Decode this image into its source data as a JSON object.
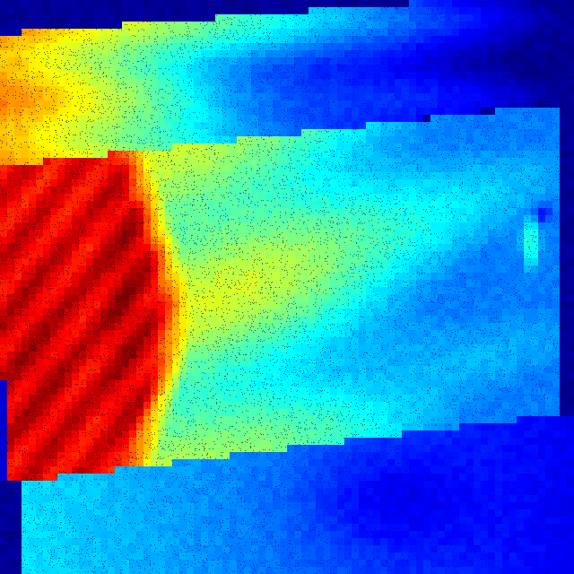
{
  "image": {
    "kind": "false-color heatmap",
    "colormap": "jet",
    "colors": {
      "background": "#00007f",
      "low": "#0000ff",
      "mid": "#00ffff",
      "high": "#ffff00",
      "peak": "#7f0000"
    }
  }
}
